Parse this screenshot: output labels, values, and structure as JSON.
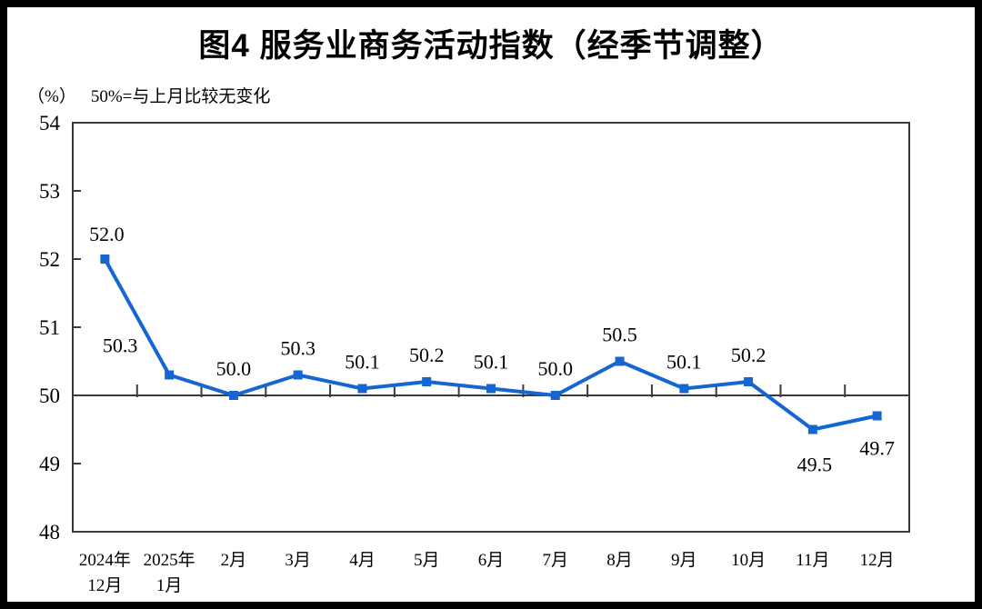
{
  "page": {
    "title": "图4 服务业商务活动指数（经季节调整）",
    "subtitle_unit": "（%）",
    "subtitle_note": "50%=与上月比较无变化"
  },
  "colors": {
    "line": "#1565D2",
    "axis": "#3A3A3A",
    "text": "#000000",
    "background": "#FFFFFF",
    "page_border": "#000000"
  },
  "chart_data": {
    "type": "line",
    "title": "图4 服务业商务活动指数（经季节调整）",
    "unit_label": "（%）",
    "note": "50%=与上月比较无变化",
    "categories": [
      [
        "2024年",
        "12月"
      ],
      [
        "2025年",
        "1月"
      ],
      [
        "2月"
      ],
      [
        "3月"
      ],
      [
        "4月"
      ],
      [
        "5月"
      ],
      [
        "6月"
      ],
      [
        "7月"
      ],
      [
        "8月"
      ],
      [
        "9月"
      ],
      [
        "10月"
      ],
      [
        "11月"
      ],
      [
        "12月"
      ]
    ],
    "values": [
      52.0,
      50.3,
      50.0,
      50.3,
      50.1,
      50.2,
      50.1,
      50.0,
      50.5,
      50.1,
      50.2,
      49.5,
      49.7
    ],
    "data_labels": [
      "52.0",
      "50.3",
      "50.0",
      "50.3",
      "50.1",
      "50.2",
      "50.1",
      "50.0",
      "50.5",
      "50.1",
      "50.2",
      "49.5",
      "49.7"
    ],
    "ylim": [
      48,
      54
    ],
    "yticks": [
      48,
      49,
      50,
      51,
      52,
      53,
      54
    ],
    "reference_line": 50,
    "grid": false,
    "legend": false,
    "marker": "square"
  }
}
